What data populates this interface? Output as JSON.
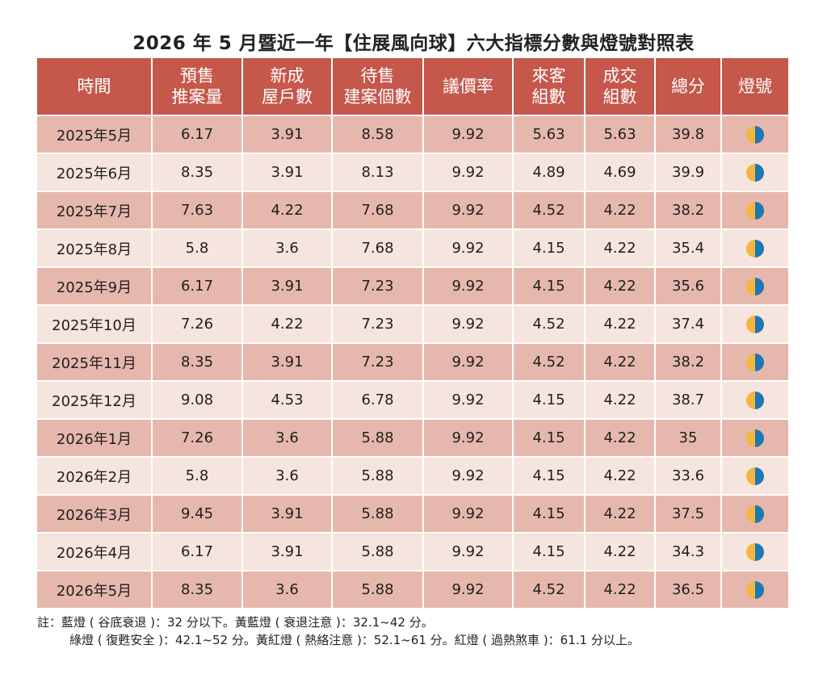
{
  "title": "2026 年 5 月暨近一年【住展風向球】六大指標分數與燈號對照表",
  "colors": {
    "header_bg": "#c5574b",
    "row_dark": "#e6b8ad",
    "row_light": "#f6e4df",
    "lamp_yellow": "#f4b63f",
    "lamp_blue": "#1f77b4"
  },
  "headers": [
    {
      "line1": "時間",
      "line2": ""
    },
    {
      "line1": "預售",
      "line2": "推案量"
    },
    {
      "line1": "新成",
      "line2": "屋戶數"
    },
    {
      "line1": "待售",
      "line2": "建案個數"
    },
    {
      "line1": "議價率",
      "line2": ""
    },
    {
      "line1": "來客",
      "line2": "組數"
    },
    {
      "line1": "成交",
      "line2": "組數"
    },
    {
      "line1": "總分",
      "line2": ""
    },
    {
      "line1": "燈號",
      "line2": ""
    }
  ],
  "rows": [
    {
      "time": "2025年5月",
      "presale": "6.17",
      "newhouse": "3.91",
      "forsale": "8.58",
      "bargain": "9.92",
      "visitors": "5.63",
      "deals": "5.63",
      "total": "39.8",
      "lamp": "yellow-blue"
    },
    {
      "time": "2025年6月",
      "presale": "8.35",
      "newhouse": "3.91",
      "forsale": "8.13",
      "bargain": "9.92",
      "visitors": "4.89",
      "deals": "4.69",
      "total": "39.9",
      "lamp": "yellow-blue"
    },
    {
      "time": "2025年7月",
      "presale": "7.63",
      "newhouse": "4.22",
      "forsale": "7.68",
      "bargain": "9.92",
      "visitors": "4.52",
      "deals": "4.22",
      "total": "38.2",
      "lamp": "yellow-blue"
    },
    {
      "time": "2025年8月",
      "presale": "5.8",
      "newhouse": "3.6",
      "forsale": "7.68",
      "bargain": "9.92",
      "visitors": "4.15",
      "deals": "4.22",
      "total": "35.4",
      "lamp": "yellow-blue"
    },
    {
      "time": "2025年9月",
      "presale": "6.17",
      "newhouse": "3.91",
      "forsale": "7.23",
      "bargain": "9.92",
      "visitors": "4.15",
      "deals": "4.22",
      "total": "35.6",
      "lamp": "yellow-blue"
    },
    {
      "time": "2025年10月",
      "presale": "7.26",
      "newhouse": "4.22",
      "forsale": "7.23",
      "bargain": "9.92",
      "visitors": "4.52",
      "deals": "4.22",
      "total": "37.4",
      "lamp": "yellow-blue"
    },
    {
      "time": "2025年11月",
      "presale": "8.35",
      "newhouse": "3.91",
      "forsale": "7.23",
      "bargain": "9.92",
      "visitors": "4.52",
      "deals": "4.22",
      "total": "38.2",
      "lamp": "yellow-blue"
    },
    {
      "time": "2025年12月",
      "presale": "9.08",
      "newhouse": "4.53",
      "forsale": "6.78",
      "bargain": "9.92",
      "visitors": "4.15",
      "deals": "4.22",
      "total": "38.7",
      "lamp": "yellow-blue"
    },
    {
      "time": "2026年1月",
      "presale": "7.26",
      "newhouse": "3.6",
      "forsale": "5.88",
      "bargain": "9.92",
      "visitors": "4.15",
      "deals": "4.22",
      "total": "35",
      "lamp": "yellow-blue"
    },
    {
      "time": "2026年2月",
      "presale": "5.8",
      "newhouse": "3.6",
      "forsale": "5.88",
      "bargain": "9.92",
      "visitors": "4.15",
      "deals": "4.22",
      "total": "33.6",
      "lamp": "yellow-blue"
    },
    {
      "time": "2026年3月",
      "presale": "9.45",
      "newhouse": "3.91",
      "forsale": "5.88",
      "bargain": "9.92",
      "visitors": "4.15",
      "deals": "4.22",
      "total": "37.5",
      "lamp": "yellow-blue"
    },
    {
      "time": "2026年4月",
      "presale": "6.17",
      "newhouse": "3.91",
      "forsale": "5.88",
      "bargain": "9.92",
      "visitors": "4.15",
      "deals": "4.22",
      "total": "34.3",
      "lamp": "yellow-blue"
    },
    {
      "time": "2026年5月",
      "presale": "8.35",
      "newhouse": "3.6",
      "forsale": "5.88",
      "bargain": "9.92",
      "visitors": "4.52",
      "deals": "4.22",
      "total": "36.5",
      "lamp": "yellow-blue"
    }
  ],
  "notes": {
    "line1": "註：藍燈 ( 谷底衰退 )：32 分以下。黃藍燈 ( 衰退注意 )：32.1~42 分。",
    "line2": "綠燈 ( 復甦安全 )：42.1~52 分。黃紅燈 ( 熱絡注意 )：52.1~61 分。紅燈 ( 過熱煞車 )：61.1 分以上。"
  }
}
